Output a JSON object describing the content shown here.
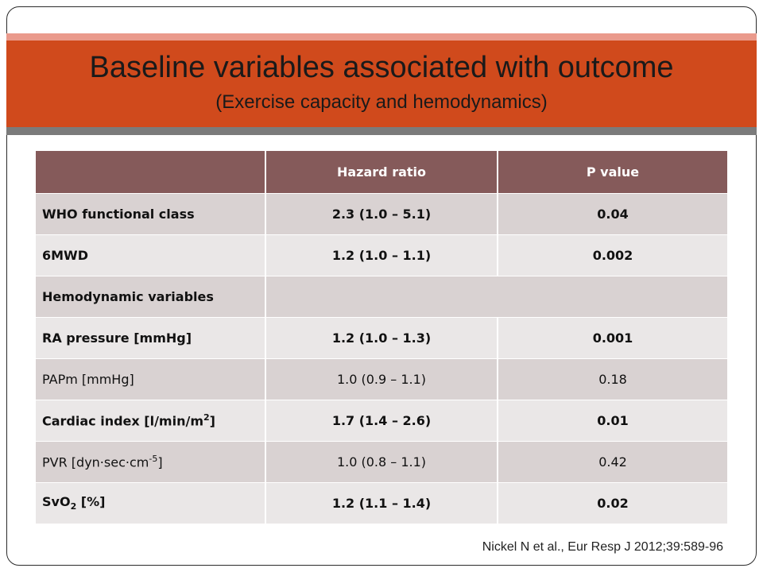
{
  "slide": {
    "title": "Baseline variables associated with outcome",
    "subtitle": "(Exercise capacity and hemodynamics)",
    "citation": "Nickel N et al., Eur Resp J 2012;39:589-96"
  },
  "table": {
    "headers": [
      "",
      "Hazard ratio",
      "P value"
    ],
    "rows": [
      {
        "label": "WHO functional class",
        "hr": "2.3 (1.0 – 5.1)",
        "p": "0.04",
        "bold": true
      },
      {
        "label": "6MWD",
        "hr": "1.2 (1.0 – 1.1)",
        "p": "0.002",
        "bold": true
      },
      {
        "label": "Hemodynamic variables",
        "hr": "",
        "p": "",
        "bold": true
      },
      {
        "label": "RA pressure [mmHg]",
        "hr": "1.2 (1.0 – 1.3)",
        "p": "0.001",
        "bold": true
      },
      {
        "label": "PAPm [mmHg]",
        "hr": "1.0 (0.9 – 1.1)",
        "p": "0.18",
        "bold": false
      },
      {
        "label_main": "Cardiac index [l/min/m",
        "label_sup": "2",
        "label_tail": "]",
        "hr": "1.7 (1.4 – 2.6)",
        "p": "0.01",
        "bold": true
      },
      {
        "label_main": "PVR [dyn·sec·cm",
        "label_sup": "-5",
        "label_tail": "]",
        "hr": "1.0 (0.8 – 1.1)",
        "p": "0.42",
        "bold": false
      },
      {
        "label_main": "SvO",
        "label_sub": "2",
        "label_tail": " [%]",
        "hr": "1.2 (1.1 – 1.4)",
        "p": "0.02",
        "bold": true
      }
    ]
  }
}
